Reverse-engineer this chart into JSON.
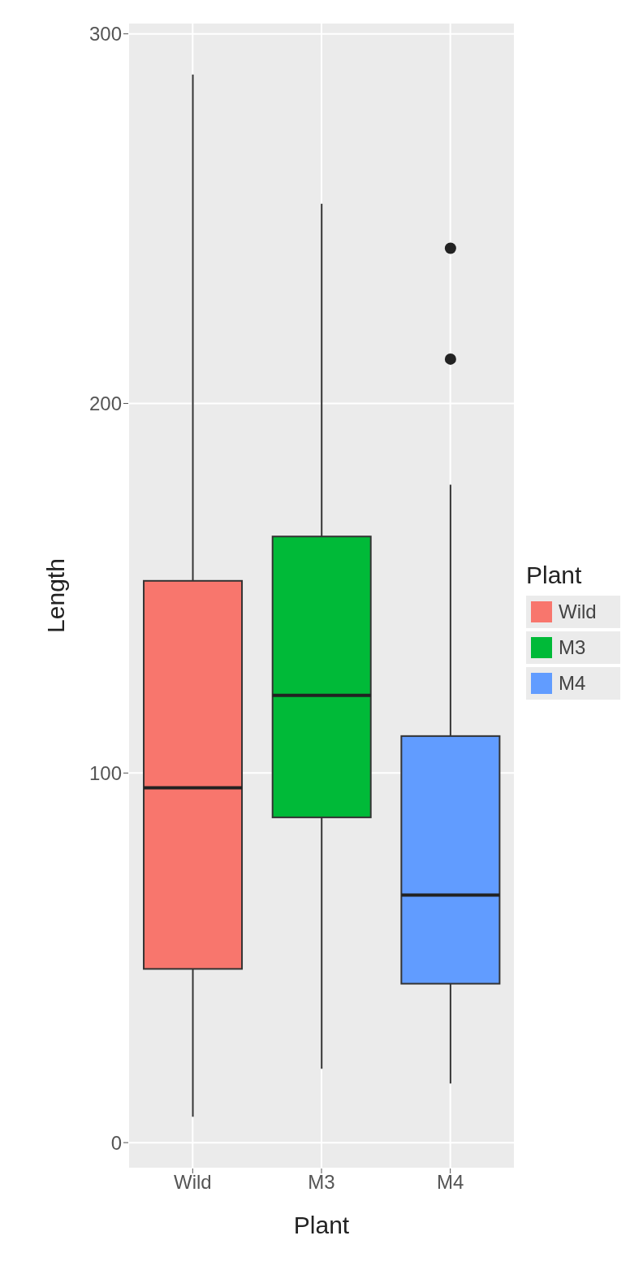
{
  "chart_data": {
    "type": "box",
    "xlabel": "Plant",
    "ylabel": "Length",
    "legend_title": "Plant",
    "categories": [
      "Wild",
      "M3",
      "M4"
    ],
    "series": [
      {
        "name": "Wild",
        "color": "#f8766d",
        "boxes": [
          {
            "low": 7,
            "q1": 47,
            "median": 96,
            "q3": 152,
            "high": 289
          },
          null,
          null
        ]
      },
      {
        "name": "M3",
        "color": "#00ba38",
        "boxes": [
          null,
          {
            "low": 20,
            "q1": 88,
            "median": 121,
            "q3": 164,
            "high": 254
          },
          null
        ]
      },
      {
        "name": "M4",
        "color": "#619cff",
        "boxes": [
          null,
          null,
          {
            "low": 16,
            "q1": 43,
            "median": 67,
            "q3": 110,
            "high": 178,
            "outliers": [
              212,
              242
            ]
          }
        ]
      }
    ],
    "ylim": [
      -7,
      303
    ],
    "yticks": [
      0,
      100,
      200,
      300
    ],
    "grid": true,
    "legend": "right"
  }
}
